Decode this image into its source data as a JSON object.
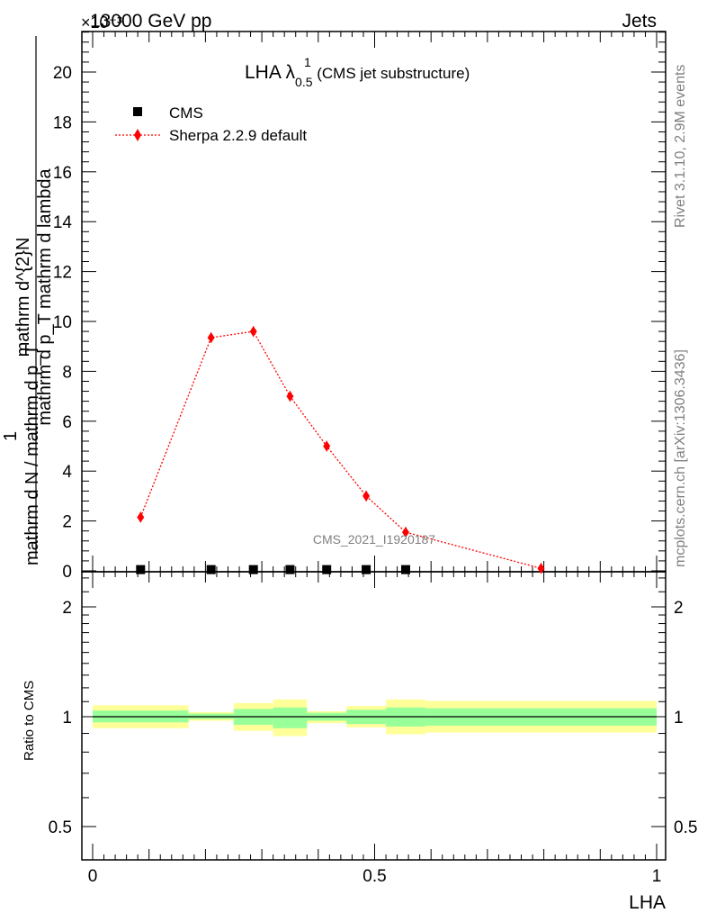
{
  "header": {
    "energy": "13000 GeV pp",
    "category": "Jets"
  },
  "side": {
    "rivet": "Rivet 3.1.10,  2.9M events",
    "mcplots": "mcplots.cern.ch [arXiv:1306.3436]"
  },
  "watermark": "CMS_2021_I1920187",
  "title": {
    "main": "LHA λ",
    "sup": "1",
    "sub": "0.5",
    "suffix": " (CMS jet substructure)"
  },
  "y_axis": {
    "num_label": "mathrm d^{2}N",
    "den_label": "mathrm d p_T mathrm d lambda",
    "factor_label": "1",
    "norm_label": "mathrm d N / mathrm d p_T",
    "exponent": "×10⁻³"
  },
  "ratio_axis": {
    "label": "Ratio to CMS"
  },
  "x_axis": {
    "label": "LHA"
  },
  "legend": [
    {
      "name": "CMS",
      "marker": "square",
      "color": "#000000"
    },
    {
      "name": "Sherpa 2.2.9 default",
      "marker": "diamond",
      "color": "#ff0000"
    }
  ],
  "chart_data": {
    "type": "line",
    "xlabel": "LHA",
    "xlim": [
      0,
      1
    ],
    "ylim": [
      0,
      21.7
    ],
    "y_unit_factor": "×10⁻³",
    "y_ticks": [
      2,
      4,
      6,
      8,
      10,
      12,
      14,
      16,
      18,
      20
    ],
    "x_ticks": [
      0,
      0.5,
      1
    ],
    "x_tick_labels": [
      "0",
      "0.5",
      "1"
    ],
    "series": [
      {
        "name": "CMS",
        "x": [
          0.085,
          0.21,
          0.285,
          0.35,
          0.415,
          0.485,
          0.555
        ],
        "y": [
          0.05,
          0.05,
          0.05,
          0.05,
          0.05,
          0.05,
          0.05
        ]
      },
      {
        "name": "Sherpa 2.2.9 default",
        "x": [
          0.085,
          0.21,
          0.285,
          0.35,
          0.415,
          0.485,
          0.555,
          0.795
        ],
        "y": [
          2.15,
          9.35,
          9.6,
          7.0,
          5.0,
          3.0,
          1.55,
          0.1
        ]
      }
    ],
    "ratio": {
      "ylabel": "Ratio to CMS",
      "ylim": [
        0.4,
        2.4
      ],
      "log": true,
      "y_ticks": [
        0.5,
        1,
        2
      ],
      "y_tick_labels": [
        "0.5",
        "1",
        "2"
      ],
      "bands": [
        {
          "x0": 0.0,
          "x1": 0.17,
          "stat": [
            0.965,
            1.04
          ],
          "total": [
            0.93,
            1.075
          ]
        },
        {
          "x0": 0.17,
          "x1": 0.25,
          "stat": [
            0.985,
            1.02
          ],
          "total": [
            0.975,
            1.03
          ]
        },
        {
          "x0": 0.25,
          "x1": 0.32,
          "stat": [
            0.95,
            1.05
          ],
          "total": [
            0.915,
            1.09
          ]
        },
        {
          "x0": 0.32,
          "x1": 0.38,
          "stat": [
            0.93,
            1.06
          ],
          "total": [
            0.885,
            1.115
          ]
        },
        {
          "x0": 0.38,
          "x1": 0.45,
          "stat": [
            0.975,
            1.025
          ],
          "total": [
            0.96,
            1.035
          ]
        },
        {
          "x0": 0.45,
          "x1": 0.52,
          "stat": [
            0.955,
            1.045
          ],
          "total": [
            0.935,
            1.07
          ]
        },
        {
          "x0": 0.52,
          "x1": 0.59,
          "stat": [
            0.94,
            1.06
          ],
          "total": [
            0.895,
            1.115
          ]
        },
        {
          "x0": 0.59,
          "x1": 1.0,
          "stat": [
            0.945,
            1.055
          ],
          "total": [
            0.905,
            1.105
          ]
        }
      ]
    }
  }
}
